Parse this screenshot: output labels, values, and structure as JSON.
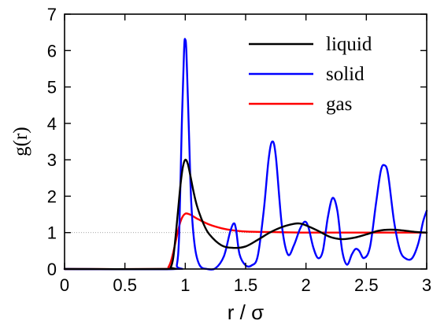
{
  "chart_data": {
    "type": "line",
    "title": "",
    "xlabel": "r / σ",
    "ylabel": "g(r)",
    "xlim": [
      0,
      3
    ],
    "ylim": [
      0,
      7
    ],
    "xticks": [
      0,
      0.5,
      1,
      1.5,
      2,
      2.5,
      3
    ],
    "xtick_labels": [
      "0",
      "0.5",
      "1",
      "1.5",
      "2",
      "2.5",
      "3"
    ],
    "yticks": [
      0,
      1,
      2,
      3,
      4,
      5,
      6,
      7
    ],
    "ytick_labels": [
      "0",
      "1",
      "2",
      "3",
      "4",
      "5",
      "6",
      "7"
    ],
    "grid": false,
    "reference_line": {
      "y": 1,
      "style": "dotted"
    },
    "legend": {
      "placement": "top-right"
    },
    "series": [
      {
        "name": "liquid",
        "color": "#000000",
        "x": [
          0,
          0.85,
          0.88,
          0.9,
          0.92,
          0.94,
          0.96,
          0.98,
          1.0,
          1.02,
          1.04,
          1.07,
          1.1,
          1.15,
          1.2,
          1.3,
          1.4,
          1.5,
          1.6,
          1.7,
          1.8,
          1.9,
          1.95,
          2.0,
          2.1,
          2.2,
          2.3,
          2.4,
          2.5,
          2.6,
          2.7,
          2.8,
          2.9,
          3.0
        ],
        "y": [
          0,
          0,
          0.05,
          0.3,
          0.9,
          1.6,
          2.3,
          2.8,
          3.0,
          2.9,
          2.6,
          2.1,
          1.7,
          1.25,
          0.95,
          0.65,
          0.58,
          0.62,
          0.8,
          1.0,
          1.15,
          1.24,
          1.25,
          1.2,
          1.05,
          0.88,
          0.82,
          0.86,
          0.95,
          1.05,
          1.08,
          1.06,
          1.02,
          1.0
        ]
      },
      {
        "name": "solid",
        "color": "#0000ff",
        "x": [
          0,
          0.9,
          0.93,
          0.95,
          0.97,
          0.99,
          1.0,
          1.01,
          1.03,
          1.05,
          1.08,
          1.12,
          1.18,
          1.25,
          1.32,
          1.37,
          1.4,
          1.42,
          1.45,
          1.5,
          1.55,
          1.6,
          1.65,
          1.69,
          1.72,
          1.75,
          1.8,
          1.85,
          1.9,
          1.95,
          1.99,
          2.02,
          2.06,
          2.1,
          2.14,
          2.18,
          2.22,
          2.26,
          2.3,
          2.34,
          2.38,
          2.41,
          2.44,
          2.48,
          2.53,
          2.58,
          2.62,
          2.65,
          2.68,
          2.73,
          2.78,
          2.83,
          2.88,
          2.93,
          2.97,
          3.0
        ],
        "y": [
          0,
          0,
          0.1,
          1.0,
          3.8,
          6.0,
          6.3,
          5.9,
          3.8,
          1.8,
          0.6,
          0.1,
          0,
          0.02,
          0.35,
          1.0,
          1.25,
          1.1,
          0.4,
          0.1,
          0.1,
          0.35,
          1.6,
          3.0,
          3.5,
          3.1,
          1.2,
          0.4,
          0.65,
          1.1,
          1.3,
          1.15,
          0.6,
          0.3,
          0.5,
          1.4,
          1.95,
          1.6,
          0.5,
          0.12,
          0.4,
          0.55,
          0.5,
          0.3,
          0.6,
          1.8,
          2.7,
          2.85,
          2.6,
          1.3,
          0.5,
          0.28,
          0.3,
          0.7,
          1.3,
          1.6
        ]
      },
      {
        "name": "gas",
        "color": "#ff0000",
        "x": [
          0,
          0.84,
          0.86,
          0.88,
          0.9,
          0.92,
          0.94,
          0.96,
          0.98,
          1.0,
          1.02,
          1.05,
          1.1,
          1.2,
          1.3,
          1.4,
          1.5,
          1.6,
          1.8,
          2.0,
          2.3,
          2.6,
          3.0
        ],
        "y": [
          0,
          0,
          0.05,
          0.2,
          0.45,
          0.75,
          1.05,
          1.3,
          1.45,
          1.52,
          1.52,
          1.48,
          1.38,
          1.22,
          1.12,
          1.06,
          1.03,
          1.02,
          1.01,
          1.0,
          1.0,
          1.0,
          1.0
        ]
      }
    ]
  }
}
